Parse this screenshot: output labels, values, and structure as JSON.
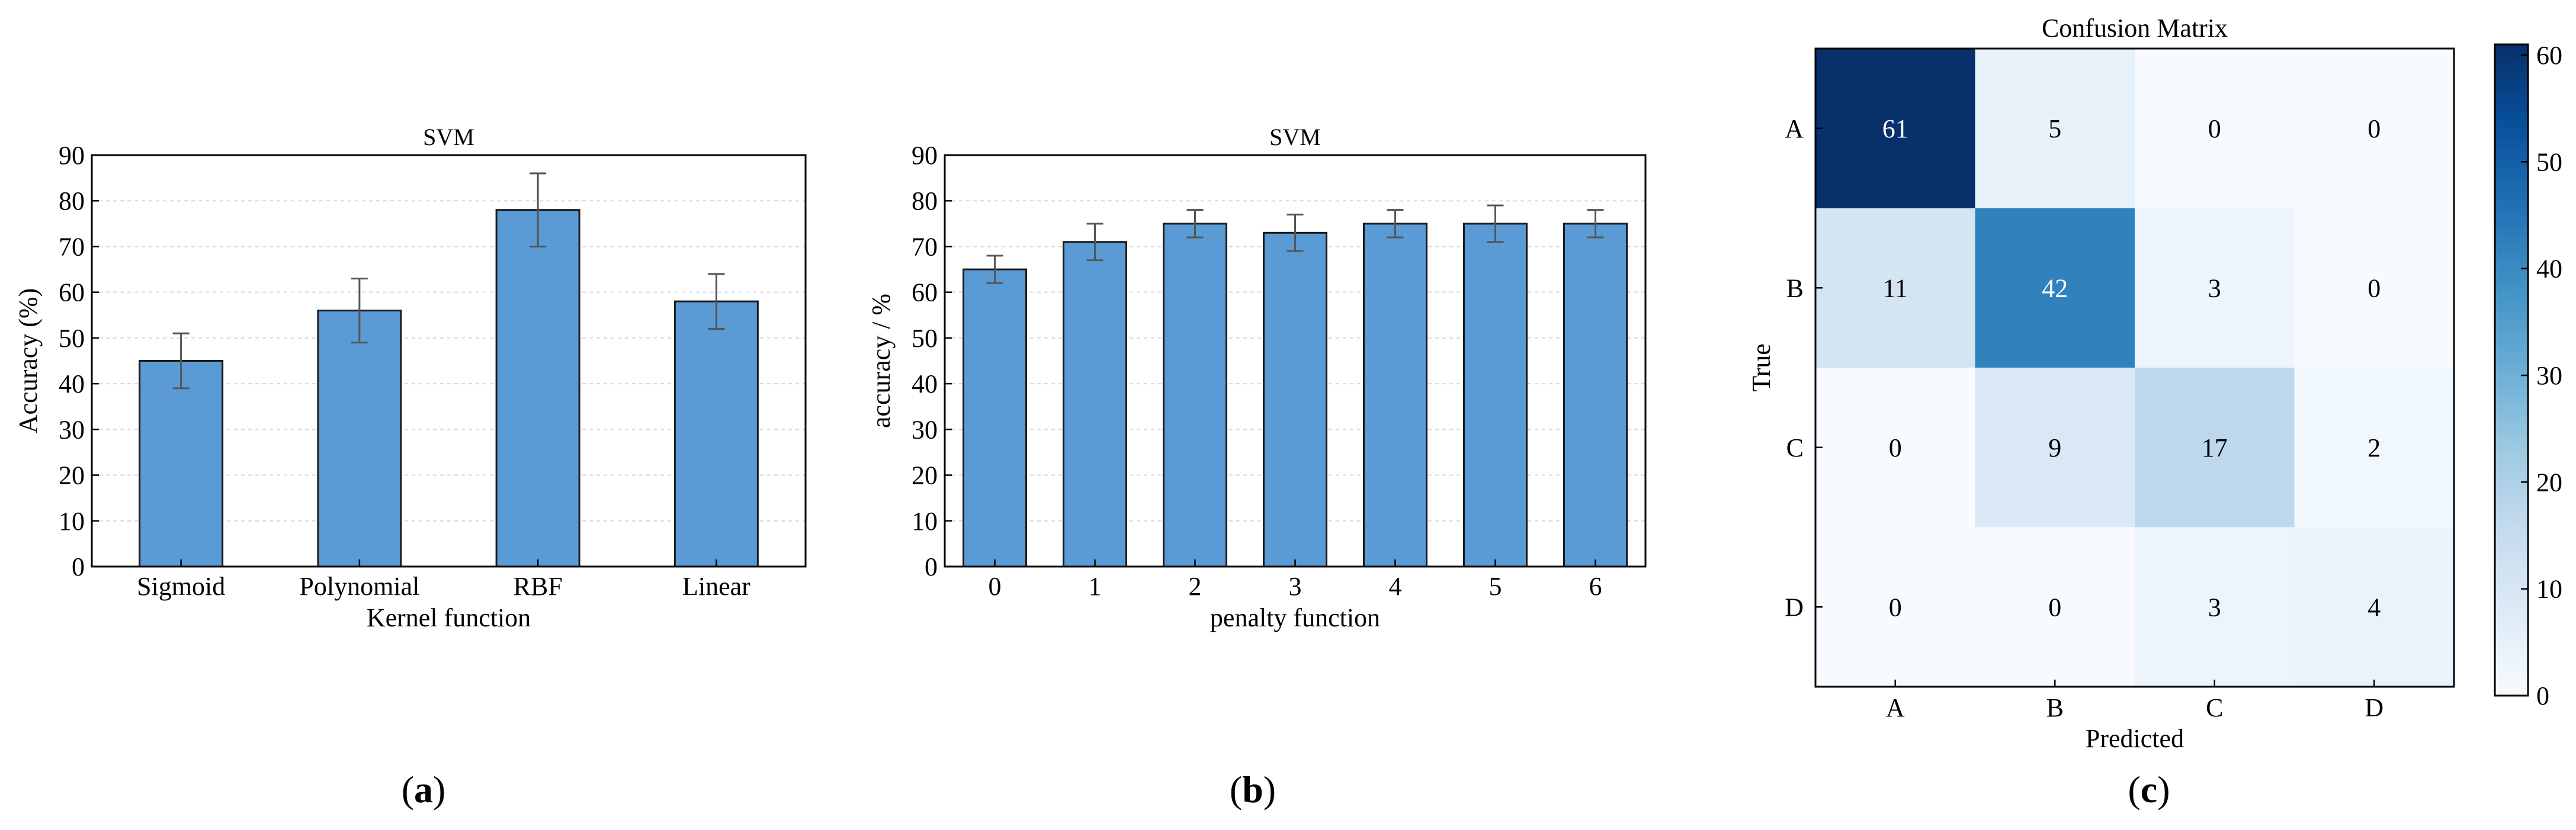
{
  "panels": {
    "a": {
      "caption_open": "(",
      "caption_letter": "a",
      "caption_close": ")"
    },
    "b": {
      "caption_open": "(",
      "caption_letter": "b",
      "caption_close": ")"
    },
    "c": {
      "caption_open": "(",
      "caption_letter": "c",
      "caption_close": ")"
    }
  },
  "colors": {
    "bar_fill": "#5b9bd5",
    "bar_stroke": "#1a1a1a",
    "error_bar": "#555555",
    "grid": "#d9d9d9",
    "cmap_low": "#f7fbff",
    "cmap_high": "#08306b"
  },
  "chart_data": [
    {
      "type": "bar",
      "title": "SVM",
      "xlabel": "Kernel function",
      "ylabel": "Accuracy (%)",
      "categories": [
        "Sigmoid",
        "Polynomial",
        "RBF",
        "Linear"
      ],
      "values": [
        45,
        56,
        78,
        58
      ],
      "errors": [
        6,
        7,
        8,
        6
      ],
      "ylim": [
        0,
        90
      ],
      "yticks": [
        0,
        10,
        20,
        30,
        40,
        50,
        60,
        70,
        80,
        90
      ],
      "grid": true,
      "legend": "none"
    },
    {
      "type": "bar",
      "title": "SVM",
      "xlabel": "penalty function",
      "ylabel": "accuracy / %",
      "categories": [
        "0",
        "1",
        "2",
        "3",
        "4",
        "5",
        "6"
      ],
      "values": [
        65,
        71,
        75,
        73,
        75,
        75,
        75
      ],
      "errors": [
        3,
        4,
        3,
        4,
        3,
        4,
        3
      ],
      "ylim": [
        0,
        90
      ],
      "yticks": [
        0,
        10,
        20,
        30,
        40,
        50,
        60,
        70,
        80,
        90
      ],
      "grid": true,
      "legend": "none"
    },
    {
      "type": "heatmap",
      "title": "Confusion Matrix",
      "xlabel": "Predicted",
      "ylabel": "True",
      "x_categories": [
        "A",
        "B",
        "C",
        "D"
      ],
      "y_categories": [
        "A",
        "B",
        "C",
        "D"
      ],
      "matrix": [
        [
          61,
          5,
          0,
          0
        ],
        [
          11,
          42,
          3,
          0
        ],
        [
          0,
          9,
          17,
          2
        ],
        [
          0,
          0,
          3,
          4
        ]
      ],
      "colorbar_range": [
        0,
        61
      ],
      "colorbar_ticks": [
        0,
        10,
        20,
        30,
        40,
        50,
        60
      ],
      "colormap": "Blues"
    }
  ]
}
